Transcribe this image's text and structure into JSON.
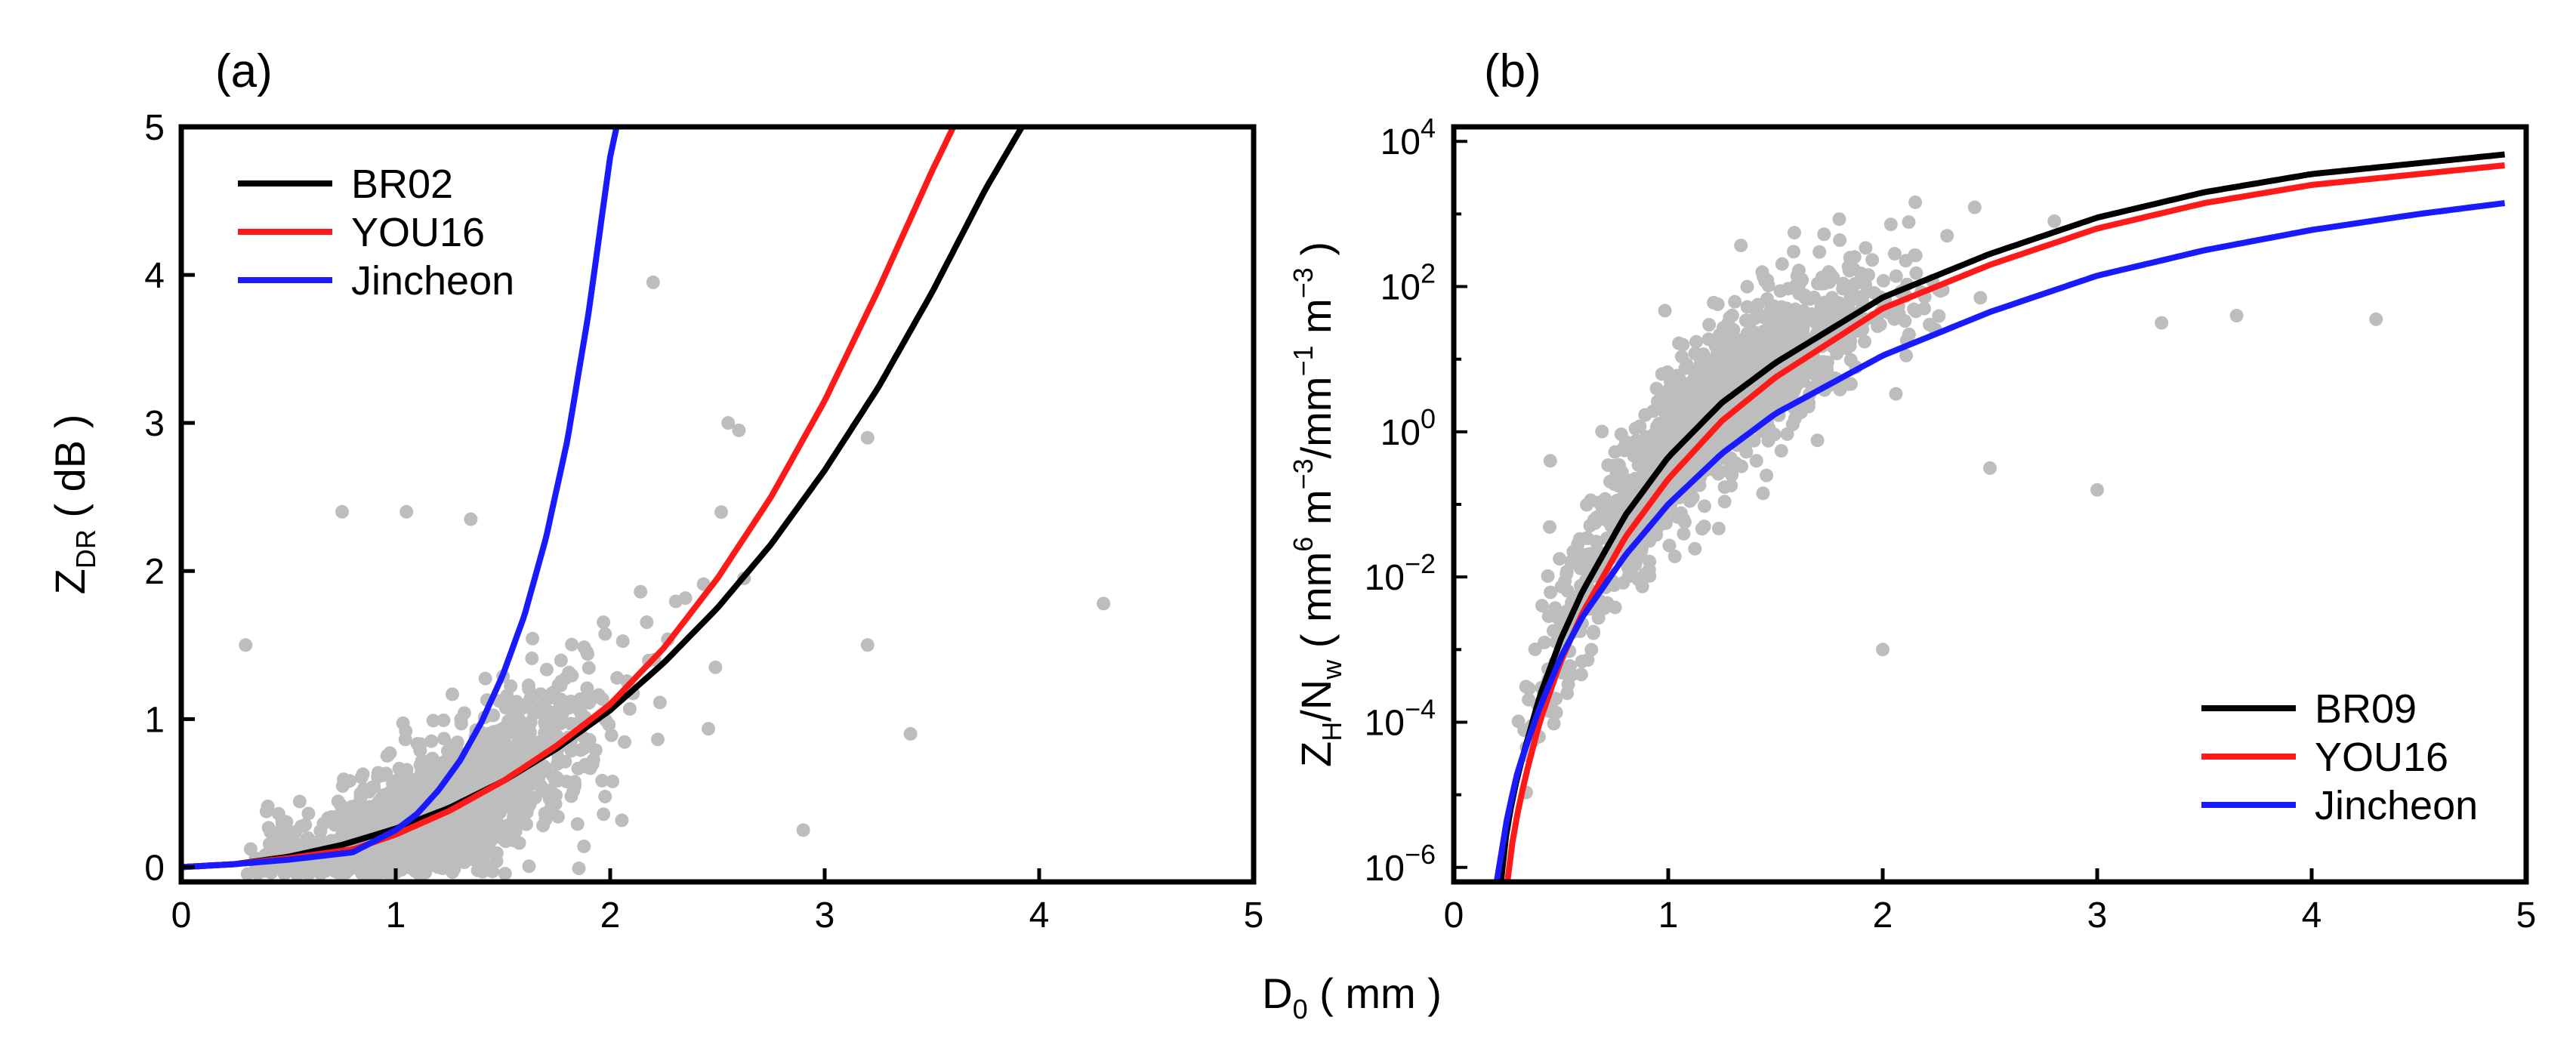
{
  "chart_data": [
    {
      "type": "scatter",
      "panel_label": "(a)",
      "ylabel": {
        "main": "Z",
        "sub": "DR",
        "rest": "( dB )"
      },
      "xlim": [
        0,
        5
      ],
      "ylim": [
        0,
        5
      ],
      "xticks": [
        "0",
        "1",
        "2",
        "3",
        "4",
        "5"
      ],
      "yticks": [
        "0",
        "1",
        "2",
        "3",
        "4",
        "5"
      ],
      "grid": false,
      "legend_position": "top-left",
      "series": [
        {
          "name": "BR02",
          "color": "#000000",
          "x": [
            0,
            0.25,
            0.5,
            0.75,
            1,
            1.25,
            1.5,
            1.75,
            2,
            2.25,
            2.5,
            2.75,
            3,
            3.25,
            3.5,
            3.75,
            3.92
          ],
          "y": [
            0,
            0.02,
            0.07,
            0.15,
            0.26,
            0.4,
            0.58,
            0.8,
            1.06,
            1.38,
            1.75,
            2.18,
            2.68,
            3.24,
            3.88,
            4.58,
            5.0
          ]
        },
        {
          "name": "YOU16",
          "color": "#ff1a1a",
          "x": [
            0,
            0.25,
            0.5,
            0.8,
            1.0,
            1.25,
            1.5,
            1.75,
            2,
            2.25,
            2.5,
            2.75,
            3,
            3.25,
            3.5,
            3.6
          ],
          "y": [
            0,
            0.02,
            0.06,
            0.12,
            0.22,
            0.38,
            0.58,
            0.82,
            1.1,
            1.48,
            1.95,
            2.5,
            3.15,
            3.9,
            4.7,
            5.0
          ]
        },
        {
          "name": "Jincheon",
          "color": "#1a1aff",
          "x": [
            0,
            0.25,
            0.5,
            0.8,
            1.0,
            1.1,
            1.2,
            1.3,
            1.4,
            1.5,
            1.6,
            1.7,
            1.8,
            1.9,
            2.0,
            2.03
          ],
          "y": [
            0,
            0.02,
            0.05,
            0.1,
            0.25,
            0.36,
            0.52,
            0.72,
            0.98,
            1.3,
            1.7,
            2.22,
            2.88,
            3.75,
            4.8,
            5.0
          ]
        }
      ],
      "scatter": {
        "name": "observations",
        "color": "#bdbdbd",
        "count": 1400,
        "x_center": 1.2,
        "x_spread": 0.38,
        "fit": "BR02",
        "y_noise": 0.26,
        "outliers": [
          [
            0.75,
            2.4
          ],
          [
            1.05,
            2.4
          ],
          [
            1.35,
            2.35
          ],
          [
            2.2,
            3.95
          ],
          [
            2.55,
            3.0
          ],
          [
            2.6,
            2.95
          ],
          [
            3.2,
            2.9
          ],
          [
            3.2,
            1.5
          ],
          [
            4.3,
            1.78
          ],
          [
            3.4,
            0.9
          ],
          [
            2.9,
            0.25
          ],
          [
            0.3,
            1.5
          ]
        ]
      }
    },
    {
      "type": "scatter",
      "panel_label": "(b)",
      "ylabel": "Z_H/N_w ( mm^6 m^-3/mm^-1 m^-3 )",
      "yscale": "log",
      "xlim": [
        0,
        5
      ],
      "ylim_log10": [
        -6.2,
        4.2
      ],
      "xticks": [
        "0",
        "1",
        "2",
        "3",
        "4",
        "5"
      ],
      "yticks": [
        {
          "base": "10",
          "exp": "-6",
          "log": -6
        },
        {
          "base": "10",
          "exp": "-4",
          "log": -4
        },
        {
          "base": "10",
          "exp": "-2",
          "log": -2
        },
        {
          "base": "10",
          "exp": "0",
          "log": 0
        },
        {
          "base": "10",
          "exp": "2",
          "log": 2
        },
        {
          "base": "10",
          "exp": "4",
          "log": 4
        }
      ],
      "grid": false,
      "legend_position": "bottom-right",
      "series": [
        {
          "name": "BR09",
          "color": "#000000",
          "x": [
            0.22,
            0.25,
            0.3,
            0.4,
            0.5,
            0.6,
            0.8,
            1.0,
            1.25,
            1.5,
            2.0,
            2.5,
            3.0,
            3.5,
            4.0,
            4.5,
            4.9
          ],
          "y_log10": [
            -6.2,
            -5.4,
            -4.7,
            -3.65,
            -2.85,
            -2.2,
            -1.15,
            -0.35,
            0.4,
            0.95,
            1.85,
            2.45,
            2.95,
            3.3,
            3.55,
            3.7,
            3.82
          ]
        },
        {
          "name": "YOU16",
          "color": "#ff1a1a",
          "x": [
            0.25,
            0.28,
            0.33,
            0.4,
            0.5,
            0.6,
            0.8,
            1.0,
            1.25,
            1.5,
            2.0,
            2.5,
            3.0,
            3.5,
            4.0,
            4.5,
            4.9
          ],
          "y_log10": [
            -6.2,
            -5.5,
            -4.8,
            -4.0,
            -3.15,
            -2.5,
            -1.45,
            -0.65,
            0.15,
            0.75,
            1.7,
            2.3,
            2.8,
            3.15,
            3.4,
            3.55,
            3.67
          ]
        },
        {
          "name": "Jincheon",
          "color": "#1a1aff",
          "x": [
            0.2,
            0.25,
            0.3,
            0.4,
            0.5,
            0.6,
            0.8,
            1.0,
            1.25,
            1.5,
            2.0,
            2.5,
            3.0,
            3.5,
            4.0,
            4.5,
            4.9
          ],
          "y_log10": [
            -6.2,
            -5.3,
            -4.65,
            -3.8,
            -3.1,
            -2.55,
            -1.7,
            -1.0,
            -0.3,
            0.25,
            1.05,
            1.65,
            2.15,
            2.5,
            2.78,
            3.0,
            3.15
          ]
        }
      ],
      "scatter": {
        "name": "observations",
        "color": "#bdbdbd",
        "count": 1500,
        "x_center": 1.2,
        "x_spread": 0.38,
        "fit": "BR09",
        "y_noise": 0.55,
        "outliers": [
          [
            0.45,
            -0.4
          ],
          [
            2.3,
            2.7
          ],
          [
            2.8,
            2.9
          ],
          [
            4.3,
            1.55
          ],
          [
            3.0,
            -0.8
          ],
          [
            2.5,
            -0.5
          ],
          [
            2.0,
            -3.0
          ],
          [
            3.3,
            1.5
          ],
          [
            3.65,
            1.6
          ]
        ]
      }
    }
  ],
  "shared_xlabel": {
    "main": "D",
    "sub": "0",
    "rest": "( mm )"
  },
  "colors": {
    "scatter": "#bdbdbd",
    "axis": "#000000"
  }
}
